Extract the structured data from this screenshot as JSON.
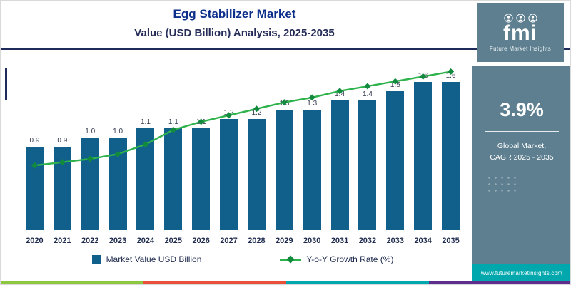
{
  "header": {
    "title": "Egg Stabilizer Market",
    "subtitle": "Value (USD Billion) Analysis, 2025-2035"
  },
  "logo": {
    "text": "fmi",
    "tagline": "Future Market Insights"
  },
  "sidebar": {
    "cagr_value": "3.9%",
    "caption_line1": "Global Market,",
    "caption_line2": "CAGR 2025 - 2035",
    "website": "www.futuremarketinsights.com"
  },
  "legend": {
    "bars": "Market Value USD Billion",
    "line": "Y-o-Y Growth Rate (%)"
  },
  "colors": {
    "bar": "#11608c",
    "line": "#2eb24b",
    "line_marker": "#128a3e",
    "accent": "#1e2a5a",
    "panel": "#5e7f90",
    "teal_bar": "#00a7ad",
    "stripe": [
      "#8dc63f",
      "#e8503a",
      "#00a7ad",
      "#5d2e8e"
    ]
  },
  "chart_data": {
    "type": "bar",
    "title": "Egg Stabilizer Market",
    "subtitle": "Value (USD Billion) Analysis, 2025-2035",
    "categories": [
      "2020",
      "2021",
      "2022",
      "2023",
      "2024",
      "2025",
      "2026",
      "2027",
      "2028",
      "2029",
      "2030",
      "2031",
      "2032",
      "2033",
      "2034",
      "2035"
    ],
    "series": [
      {
        "name": "Market Value USD Billion",
        "type": "bar",
        "values": [
          0.9,
          0.9,
          1.0,
          1.0,
          1.1,
          1.1,
          1.1,
          1.2,
          1.2,
          1.3,
          1.3,
          1.4,
          1.4,
          1.5,
          1.6,
          1.6
        ]
      },
      {
        "name": "Y-o-Y Growth Rate (%)",
        "type": "line",
        "values_labeled": false,
        "shape_normalized": [
          0.4,
          0.42,
          0.44,
          0.47,
          0.53,
          0.62,
          0.67,
          0.71,
          0.75,
          0.79,
          0.82,
          0.86,
          0.89,
          0.92,
          0.95,
          0.98
        ]
      }
    ],
    "ylim": [
      0,
      1.8
    ],
    "grid": false,
    "legend_position": "bottom",
    "data_labels": true
  }
}
